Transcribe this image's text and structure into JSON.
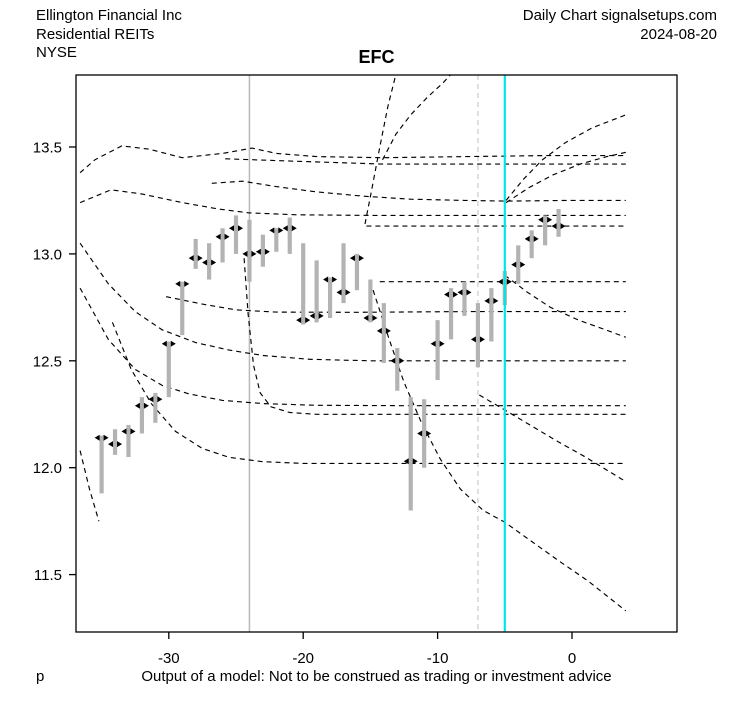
{
  "header": {
    "company": "Ellington Financial Inc",
    "industry": "Residential REITs",
    "exchange": "NYSE",
    "chart_type": "Daily Chart signalsetups.com",
    "date": "2024-08-20"
  },
  "title": "EFC",
  "footer": {
    "left_mark": "p",
    "disclaimer": "Output of a model: Not to be construed as trading or investment advice"
  },
  "colors": {
    "bar": "#b3b3b3",
    "marker": "#000000",
    "curve": "#000000",
    "vline_gray": "#b9b9b9",
    "vline_dashed": "#d2d2d2",
    "vline_cyan": "#00e6e6",
    "axis": "#000000"
  },
  "chart_data": {
    "type": "bar",
    "subtype": "daily-high-low-price-bars-with-model-curves",
    "title": "EFC",
    "xlabel": "",
    "ylabel": "",
    "xlim": [
      -36.9,
      7.8
    ],
    "ylim": [
      11.23,
      13.84
    ],
    "grid": false,
    "x_ticks": [
      -30,
      -20,
      -10,
      0
    ],
    "y_ticks": [
      11.5,
      12.0,
      12.5,
      13.0,
      13.5
    ],
    "bars": [
      {
        "x": -35,
        "high": 12.15,
        "low": 11.88,
        "mark": 12.14
      },
      {
        "x": -34,
        "high": 12.18,
        "low": 12.06,
        "mark": 12.11
      },
      {
        "x": -33,
        "high": 12.2,
        "low": 12.05,
        "mark": 12.17
      },
      {
        "x": -32,
        "high": 12.33,
        "low": 12.16,
        "mark": 12.29
      },
      {
        "x": -31,
        "high": 12.35,
        "low": 12.21,
        "mark": 12.32
      },
      {
        "x": -30,
        "high": 12.59,
        "low": 12.33,
        "mark": 12.58
      },
      {
        "x": -29,
        "high": 12.87,
        "low": 12.62,
        "mark": 12.86
      },
      {
        "x": -28,
        "high": 13.07,
        "low": 12.93,
        "mark": 12.98
      },
      {
        "x": -27,
        "high": 13.05,
        "low": 12.88,
        "mark": 12.96
      },
      {
        "x": -26,
        "high": 13.12,
        "low": 12.96,
        "mark": 13.08
      },
      {
        "x": -25,
        "high": 13.18,
        "low": 13.0,
        "mark": 13.12
      },
      {
        "x": -24,
        "high": 13.16,
        "low": 12.87,
        "mark": 13.0
      },
      {
        "x": -23,
        "high": 13.09,
        "low": 12.94,
        "mark": 13.01
      },
      {
        "x": -22,
        "high": 13.12,
        "low": 13.01,
        "mark": 13.11
      },
      {
        "x": -21,
        "high": 13.17,
        "low": 13.0,
        "mark": 13.12
      },
      {
        "x": -20,
        "high": 13.05,
        "low": 12.67,
        "mark": 12.69
      },
      {
        "x": -19,
        "high": 12.97,
        "low": 12.68,
        "mark": 12.71
      },
      {
        "x": -18,
        "high": 12.89,
        "low": 12.7,
        "mark": 12.88
      },
      {
        "x": -17,
        "high": 13.05,
        "low": 12.77,
        "mark": 12.82
      },
      {
        "x": -16,
        "high": 13.0,
        "low": 12.83,
        "mark": 12.98
      },
      {
        "x": -15,
        "high": 12.88,
        "low": 12.68,
        "mark": 12.7
      },
      {
        "x": -14,
        "high": 12.77,
        "low": 12.49,
        "mark": 12.64
      },
      {
        "x": -13,
        "high": 12.56,
        "low": 12.36,
        "mark": 12.5
      },
      {
        "x": -12,
        "high": 12.33,
        "low": 11.8,
        "mark": 12.03
      },
      {
        "x": -11,
        "high": 12.32,
        "low": 12.0,
        "mark": 12.16
      },
      {
        "x": -10,
        "high": 12.69,
        "low": 12.41,
        "mark": 12.58
      },
      {
        "x": -9,
        "high": 12.84,
        "low": 12.6,
        "mark": 12.81
      },
      {
        "x": -8,
        "high": 12.87,
        "low": 12.71,
        "mark": 12.82
      },
      {
        "x": -7,
        "high": 12.77,
        "low": 12.47,
        "mark": 12.6
      },
      {
        "x": -6,
        "high": 12.84,
        "low": 12.59,
        "mark": 12.78
      },
      {
        "x": -5,
        "high": 12.92,
        "low": 12.76,
        "mark": 12.87
      },
      {
        "x": -4,
        "high": 13.04,
        "low": 12.86,
        "mark": 12.95
      },
      {
        "x": -3,
        "high": 13.11,
        "low": 12.98,
        "mark": 13.07
      },
      {
        "x": -2,
        "high": 13.18,
        "low": 13.04,
        "mark": 13.16
      },
      {
        "x": -1,
        "high": 13.21,
        "low": 13.08,
        "mark": 13.13
      }
    ],
    "vlines": [
      {
        "x": -24,
        "style": "solid",
        "color_key": "vline_gray",
        "width": 1.5
      },
      {
        "x": -7,
        "style": "dashed",
        "color_key": "vline_dashed",
        "width": 1.4
      },
      {
        "x": -5,
        "style": "solid",
        "color_key": "vline_cyan",
        "width": 2.2
      }
    ],
    "curves": [
      {
        "name": "upper-wavy",
        "points": [
          [
            -36.6,
            13.38
          ],
          [
            -35.5,
            13.44
          ],
          [
            -33.5,
            13.505
          ],
          [
            -31.5,
            13.49
          ],
          [
            -29,
            13.45
          ],
          [
            -26,
            13.47
          ],
          [
            -23.8,
            13.495
          ],
          [
            -22,
            13.47
          ],
          [
            -19,
            13.455
          ],
          [
            -14,
            13.45
          ],
          [
            -8,
            13.455
          ],
          [
            -2,
            13.46
          ],
          [
            4,
            13.46
          ]
        ]
      },
      {
        "name": "upper-line",
        "points": [
          [
            -25.8,
            13.445
          ],
          [
            -20,
            13.432
          ],
          [
            -14,
            13.42
          ],
          [
            -6,
            13.42
          ],
          [
            4,
            13.42
          ]
        ]
      },
      {
        "name": "mid-line-1325",
        "points": [
          [
            -26.8,
            13.33
          ],
          [
            -24.5,
            13.34
          ],
          [
            -22,
            13.315
          ],
          [
            -19,
            13.29
          ],
          [
            -15.5,
            13.27
          ],
          [
            -12,
            13.256
          ],
          [
            -8,
            13.25
          ],
          [
            -4.9,
            13.247
          ],
          [
            0,
            13.25
          ],
          [
            4,
            13.25
          ]
        ]
      },
      {
        "name": "branch-up-steep",
        "points": [
          [
            -4.9,
            13.25
          ],
          [
            -3.6,
            13.35
          ],
          [
            -2.2,
            13.44
          ],
          [
            -0.5,
            13.52
          ],
          [
            1.5,
            13.59
          ],
          [
            4,
            13.65
          ]
        ]
      },
      {
        "name": "branch-up-gentle",
        "points": [
          [
            -4.9,
            13.24
          ],
          [
            -3.2,
            13.31
          ],
          [
            -1.4,
            13.37
          ],
          [
            0.6,
            13.42
          ],
          [
            2.6,
            13.455
          ],
          [
            4,
            13.475
          ]
        ]
      },
      {
        "name": "line-1318",
        "points": [
          [
            -36.6,
            13.24
          ],
          [
            -34.3,
            13.3
          ],
          [
            -32,
            13.28
          ],
          [
            -29,
            13.24
          ],
          [
            -26.3,
            13.21
          ],
          [
            -24,
            13.192
          ],
          [
            -20.5,
            13.183
          ],
          [
            -15,
            13.18
          ],
          [
            -5,
            13.18
          ],
          [
            4,
            13.18
          ]
        ]
      },
      {
        "name": "line-1313",
        "points": [
          [
            -15.3,
            13.13
          ],
          [
            -8,
            13.13
          ],
          [
            0,
            13.13
          ],
          [
            4,
            13.13
          ]
        ]
      },
      {
        "name": "line-1287",
        "points": [
          [
            -14.3,
            12.87
          ],
          [
            -7,
            12.87
          ],
          [
            0,
            12.87
          ],
          [
            4,
            12.87
          ]
        ]
      },
      {
        "name": "line-1273",
        "points": [
          [
            -30.2,
            12.8
          ],
          [
            -27.5,
            12.765
          ],
          [
            -25,
            12.738
          ],
          [
            -22,
            12.728
          ],
          [
            -16,
            12.727
          ],
          [
            -8,
            12.73
          ],
          [
            4,
            12.73
          ]
        ]
      },
      {
        "name": "decay-1250",
        "points": [
          [
            -36.6,
            13.05
          ],
          [
            -34.5,
            12.86
          ],
          [
            -32.5,
            12.73
          ],
          [
            -30.5,
            12.645
          ],
          [
            -28,
            12.585
          ],
          [
            -25.5,
            12.55
          ],
          [
            -23,
            12.525
          ],
          [
            -19.5,
            12.507
          ],
          [
            -15,
            12.5
          ],
          [
            -8,
            12.5
          ],
          [
            4,
            12.5
          ]
        ]
      },
      {
        "name": "decay-1229",
        "points": [
          [
            -36.6,
            12.84
          ],
          [
            -34.5,
            12.6
          ],
          [
            -32.5,
            12.46
          ],
          [
            -30.5,
            12.385
          ],
          [
            -28.5,
            12.345
          ],
          [
            -26,
            12.315
          ],
          [
            -23,
            12.3
          ],
          [
            -19,
            12.292
          ],
          [
            -12,
            12.29
          ],
          [
            -4,
            12.29
          ],
          [
            4,
            12.29
          ]
        ]
      },
      {
        "name": "plunge-1225",
        "points": [
          [
            -24.4,
            12.98
          ],
          [
            -24.1,
            12.72
          ],
          [
            -23.7,
            12.48
          ],
          [
            -23.2,
            12.35
          ],
          [
            -22.4,
            12.285
          ],
          [
            -21,
            12.258
          ],
          [
            -19,
            12.25
          ],
          [
            -10,
            12.25
          ],
          [
            0,
            12.25
          ],
          [
            4,
            12.25
          ]
        ]
      },
      {
        "name": "decay-1202",
        "points": [
          [
            -34.2,
            12.68
          ],
          [
            -32.8,
            12.46
          ],
          [
            -31.3,
            12.3
          ],
          [
            -29.5,
            12.17
          ],
          [
            -27.5,
            12.09
          ],
          [
            -25.5,
            12.048
          ],
          [
            -23,
            12.028
          ],
          [
            -20,
            12.02
          ],
          [
            -12,
            12.02
          ],
          [
            -4,
            12.02
          ],
          [
            4,
            12.02
          ]
        ]
      },
      {
        "name": "steep-up-1",
        "points": [
          [
            -15.4,
            13.14
          ],
          [
            -14.9,
            13.3
          ],
          [
            -14.3,
            13.5
          ],
          [
            -13.7,
            13.69
          ],
          [
            -13.1,
            13.84
          ]
        ]
      },
      {
        "name": "steep-up-2",
        "points": [
          [
            -14.1,
            13.44
          ],
          [
            -13.1,
            13.56
          ],
          [
            -12,
            13.65
          ],
          [
            -10.8,
            13.73
          ],
          [
            -9.6,
            13.8
          ],
          [
            -9.0,
            13.84
          ]
        ]
      },
      {
        "name": "diag-long",
        "points": [
          [
            -14.8,
            12.83
          ],
          [
            -13.6,
            12.6
          ],
          [
            -12.5,
            12.4
          ],
          [
            -11.2,
            12.21
          ],
          [
            -9.8,
            12.04
          ],
          [
            -8.3,
            11.9
          ],
          [
            -6.6,
            11.8
          ],
          [
            -5,
            11.745
          ],
          [
            -3,
            11.655
          ],
          [
            -1,
            11.565
          ],
          [
            1.2,
            11.47
          ],
          [
            4,
            11.33
          ]
        ]
      },
      {
        "name": "diag-mid",
        "points": [
          [
            -6.9,
            12.34
          ],
          [
            -5,
            12.27
          ],
          [
            -3,
            12.195
          ],
          [
            -1,
            12.12
          ],
          [
            1,
            12.05
          ],
          [
            4,
            11.935
          ]
        ]
      },
      {
        "name": "diag-small",
        "points": [
          [
            -5,
            12.9
          ],
          [
            -3.3,
            12.82
          ],
          [
            -1.6,
            12.75
          ],
          [
            0.5,
            12.69
          ],
          [
            2.5,
            12.645
          ],
          [
            4,
            12.61
          ]
        ]
      },
      {
        "name": "left-bottom-seg",
        "points": [
          [
            -36.6,
            12.08
          ],
          [
            -35.9,
            11.9
          ],
          [
            -35.2,
            11.75
          ]
        ]
      }
    ]
  }
}
